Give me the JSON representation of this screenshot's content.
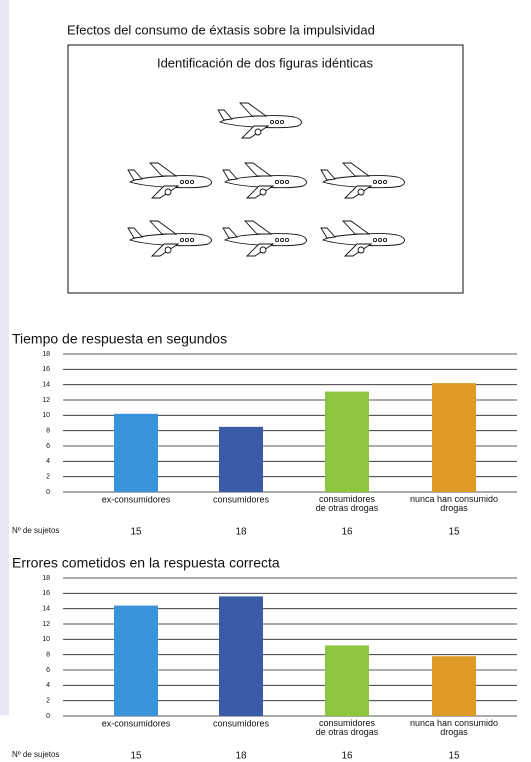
{
  "figure": {
    "title": "Efectos del consumo de éxtasis sobre la impulsividad",
    "panel_title": "Identificación de dos figuras idénticas"
  },
  "chart_data": [
    {
      "type": "bar",
      "title": "Tiempo de respuesta en segundos",
      "categories": [
        "ex-consumidores",
        "consumidores",
        "consumidores\nde otras drogas",
        "nunca han consumido\ndrogas"
      ],
      "values": [
        10.2,
        8.5,
        13.1,
        14.2
      ],
      "colors": [
        "#3b93dc",
        "#3a5ca6",
        "#8cc63f",
        "#e09b27"
      ],
      "ylim": [
        0,
        18
      ],
      "yticks": [
        0,
        2,
        4,
        6,
        8,
        10,
        12,
        14,
        16,
        18
      ],
      "grid": true,
      "subjects_label": "Nº de sujetos",
      "subjects": [
        15,
        18,
        16,
        15
      ]
    },
    {
      "type": "bar",
      "title": "Errores cometidos en la respuesta correcta",
      "categories": [
        "ex-consumidores",
        "consumidores",
        "consumidores\nde otras drogas",
        "nunca han consumido\ndrogas"
      ],
      "values": [
        14.4,
        15.6,
        9.2,
        7.8
      ],
      "colors": [
        "#3b93dc",
        "#3a5ca6",
        "#8cc63f",
        "#e09b27"
      ],
      "ylim": [
        0,
        18
      ],
      "yticks": [
        0,
        2,
        4,
        6,
        8,
        10,
        12,
        14,
        16,
        18
      ],
      "grid": true,
      "subjects_label": "Nº de sujetos",
      "subjects": [
        15,
        18,
        16,
        15
      ]
    }
  ]
}
